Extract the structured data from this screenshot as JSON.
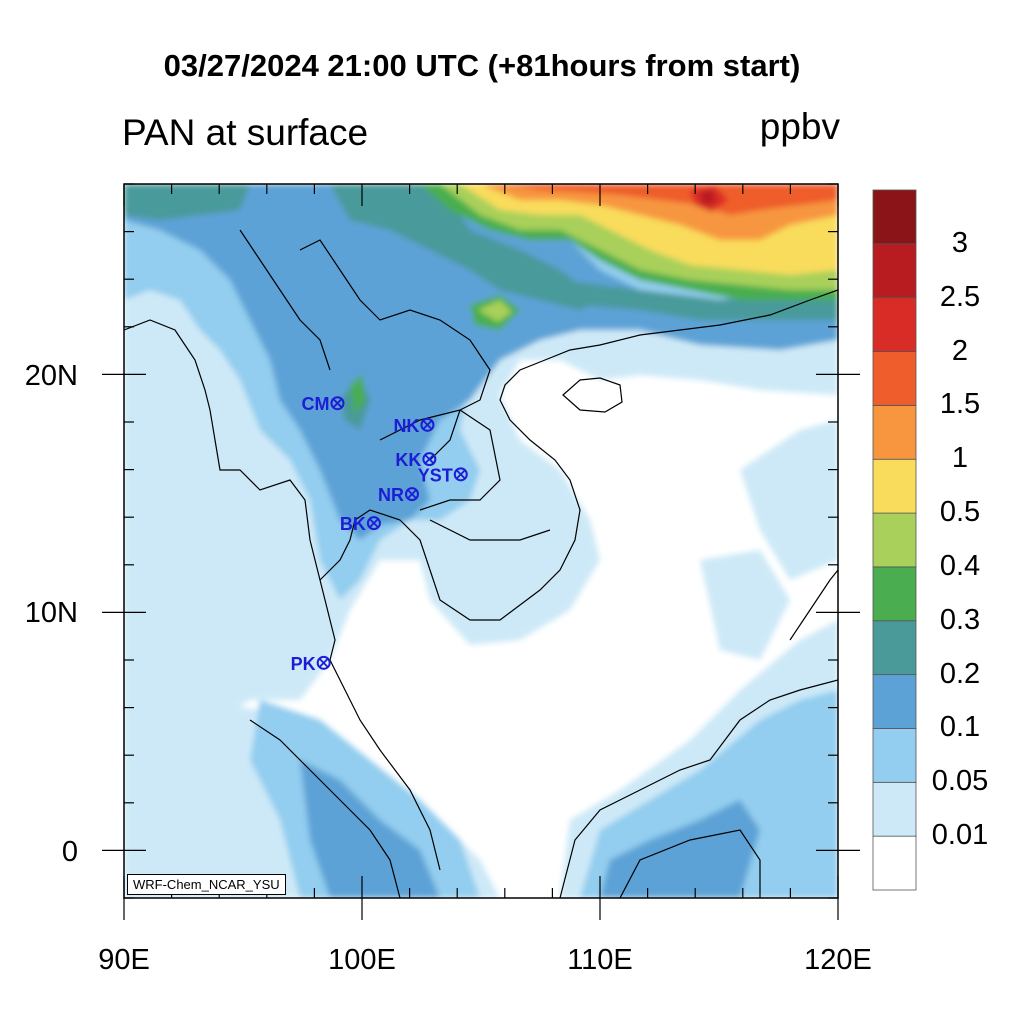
{
  "title": "03/27/2024 21:00 UTC (+81hours from start)",
  "subtitle": "PAN at surface",
  "units": "ppbv",
  "model_label": "WRF-Chem_NCAR_YSU",
  "map": {
    "lon_range": [
      90,
      120
    ],
    "lat_range": [
      -2,
      28
    ],
    "lon_ticks": [
      "90E",
      "100E",
      "110E",
      "120E"
    ],
    "lat_ticks": [
      "0",
      "10N",
      "20N"
    ]
  },
  "colorbar": {
    "levels": [
      "0.01",
      "0.05",
      "0.1",
      "0.2",
      "0.3",
      "0.4",
      "0.5",
      "1",
      "1.5",
      "2",
      "2.5",
      "3"
    ],
    "colors": [
      "#ffffff",
      "#cde9f7",
      "#93cdef",
      "#5da2d6",
      "#4a9a9a",
      "#4aae50",
      "#a8d05a",
      "#f9dc5c",
      "#f7963f",
      "#ee5d2b",
      "#da2c27",
      "#b81c20",
      "#8b1419"
    ]
  },
  "stations": [
    {
      "code": "CM",
      "lon": 98.97,
      "lat": 18.79
    },
    {
      "code": "NK",
      "lon": 102.75,
      "lat": 17.88
    },
    {
      "code": "KK",
      "lon": 102.83,
      "lat": 16.44
    },
    {
      "code": "YST",
      "lon": 104.15,
      "lat": 15.8
    },
    {
      "code": "NR",
      "lon": 102.1,
      "lat": 14.97
    },
    {
      "code": "BK",
      "lon": 100.5,
      "lat": 13.75
    },
    {
      "code": "PK",
      "lon": 98.39,
      "lat": 7.88
    }
  ],
  "colors": {
    "station": "#1d1dd6",
    "coast": "#000000"
  }
}
